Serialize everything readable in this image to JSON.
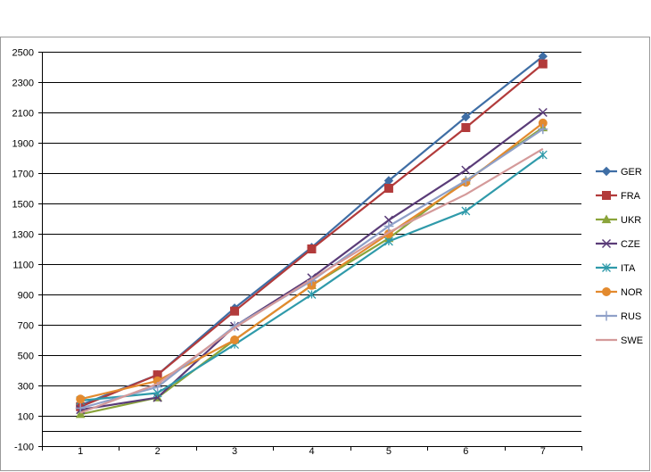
{
  "chart_data": {
    "type": "line",
    "title": "",
    "xlabel": "",
    "ylabel": "",
    "x": [
      1,
      2,
      3,
      4,
      5,
      6,
      7
    ],
    "ylim": [
      -100,
      2500
    ],
    "yticks": [
      -100,
      100,
      300,
      500,
      700,
      900,
      1100,
      1300,
      1500,
      1700,
      1900,
      2100,
      2300,
      2500
    ],
    "grid": true,
    "legend": "right",
    "series": [
      {
        "name": "GER",
        "color": "#3f6ea5",
        "marker": "diamond",
        "values": [
          170,
          370,
          810,
          1210,
          1650,
          2070,
          2470
        ]
      },
      {
        "name": "FRA",
        "color": "#b23b3b",
        "marker": "square",
        "values": [
          160,
          370,
          790,
          1200,
          1600,
          2000,
          2420
        ]
      },
      {
        "name": "UKR",
        "color": "#8aa43a",
        "marker": "triangle",
        "values": [
          110,
          220,
          600,
          960,
          1270,
          1650,
          2000
        ]
      },
      {
        "name": "CZE",
        "color": "#5a3c78",
        "marker": "x",
        "values": [
          140,
          220,
          690,
          1010,
          1390,
          1720,
          2100
        ]
      },
      {
        "name": "ITA",
        "color": "#2f9aaa",
        "marker": "star",
        "values": [
          200,
          250,
          570,
          900,
          1250,
          1450,
          1820
        ]
      },
      {
        "name": "NOR",
        "color": "#e38a2e",
        "marker": "circle",
        "values": [
          210,
          330,
          600,
          960,
          1300,
          1640,
          2030
        ]
      },
      {
        "name": "RUS",
        "color": "#8fa0c8",
        "marker": "plus",
        "values": [
          150,
          290,
          690,
          990,
          1350,
          1650,
          1990
        ]
      },
      {
        "name": "SWE",
        "color": "#d49a9a",
        "marker": "none",
        "values": [
          120,
          310,
          680,
          1000,
          1310,
          1560,
          1860
        ]
      }
    ]
  }
}
